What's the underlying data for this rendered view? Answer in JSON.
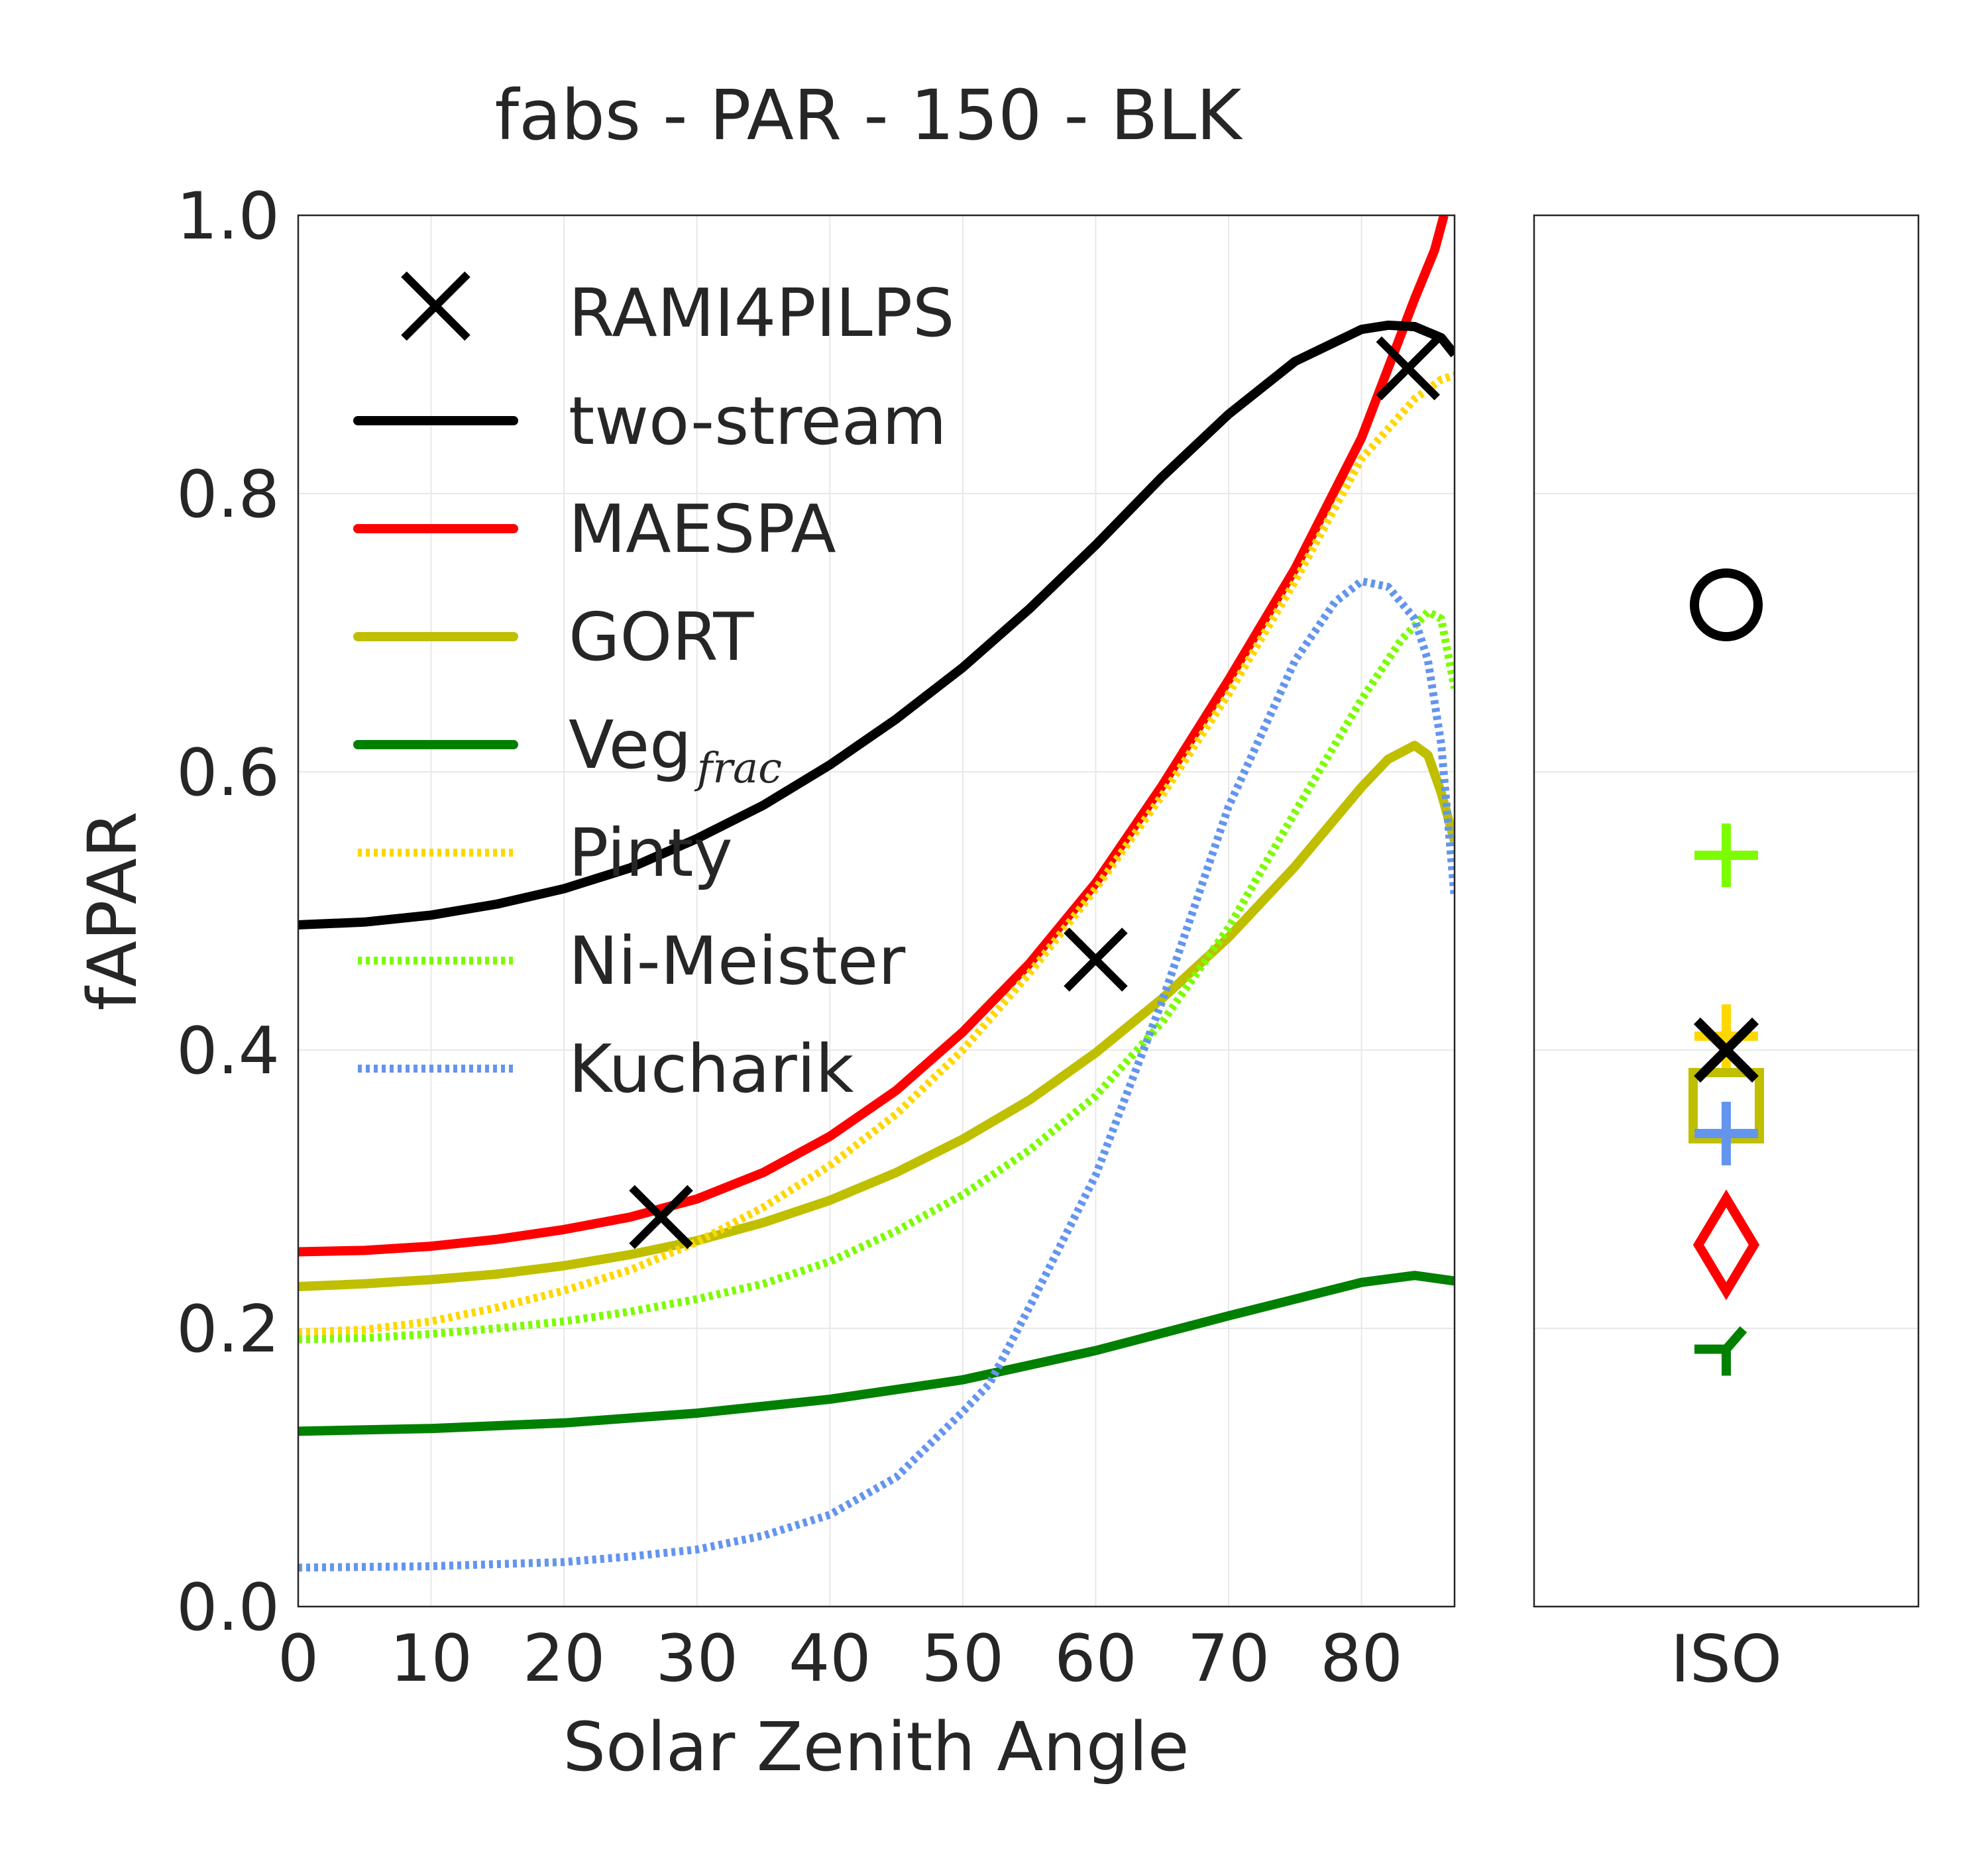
{
  "chart_data": [
    {
      "type": "line",
      "title": "fabs - PAR - 150 - BLK",
      "xlabel": "Solar Zenith Angle",
      "ylabel": "fAPAR",
      "xlim": [
        0,
        87
      ],
      "ylim": [
        0.0,
        1.0
      ],
      "xticks": [
        0,
        10,
        20,
        30,
        40,
        50,
        60,
        70,
        80
      ],
      "yticks": [
        "0.0",
        "0.2",
        "0.4",
        "0.6",
        "0.8",
        "1.0"
      ],
      "grid": true,
      "legend_position": "upper-left",
      "series": [
        {
          "name": "RAMI4PILPS",
          "style": "marker-x",
          "color": "#000000",
          "x": [
            27.3,
            60.0,
            83.5
          ],
          "y": [
            0.28,
            0.465,
            0.89
          ]
        },
        {
          "name": "two-stream",
          "style": "solid",
          "color": "#000000",
          "x": [
            0,
            5,
            10,
            15,
            20,
            25,
            30,
            35,
            40,
            45,
            50,
            55,
            60,
            65,
            70,
            75,
            80,
            82,
            84,
            86,
            87
          ],
          "y": [
            0.49,
            0.492,
            0.497,
            0.505,
            0.516,
            0.531,
            0.552,
            0.576,
            0.605,
            0.638,
            0.675,
            0.717,
            0.763,
            0.812,
            0.857,
            0.895,
            0.918,
            0.921,
            0.92,
            0.912,
            0.9
          ]
        },
        {
          "name": "MAESPA",
          "style": "solid",
          "color": "#ff0000",
          "x": [
            0,
            5,
            10,
            15,
            20,
            25,
            30,
            35,
            40,
            45,
            50,
            55,
            60,
            65,
            70,
            75,
            80,
            82,
            84,
            85.5,
            86.2
          ],
          "y": [
            0.255,
            0.256,
            0.259,
            0.264,
            0.271,
            0.28,
            0.293,
            0.312,
            0.338,
            0.371,
            0.413,
            0.462,
            0.52,
            0.59,
            0.666,
            0.746,
            0.84,
            0.89,
            0.94,
            0.975,
            1.0
          ]
        },
        {
          "name": "GORT",
          "style": "solid",
          "color": "#bfbf00",
          "x": [
            0,
            5,
            10,
            15,
            20,
            25,
            30,
            35,
            40,
            45,
            50,
            55,
            60,
            65,
            70,
            75,
            80,
            82,
            84,
            85,
            86,
            87
          ],
          "y": [
            0.23,
            0.232,
            0.235,
            0.239,
            0.245,
            0.253,
            0.263,
            0.276,
            0.292,
            0.312,
            0.336,
            0.364,
            0.398,
            0.437,
            0.481,
            0.532,
            0.589,
            0.609,
            0.619,
            0.612,
            0.585,
            0.55
          ]
        },
        {
          "name": "Veg_frac",
          "style": "solid",
          "color": "#008000",
          "x": [
            0,
            10,
            20,
            30,
            40,
            50,
            60,
            70,
            80,
            84,
            87
          ],
          "y": [
            0.126,
            0.128,
            0.132,
            0.139,
            0.149,
            0.163,
            0.184,
            0.209,
            0.233,
            0.238,
            0.234
          ]
        },
        {
          "name": "Pinty",
          "style": "dotted",
          "color": "#ffd700",
          "x": [
            0,
            5,
            10,
            15,
            20,
            25,
            30,
            35,
            40,
            45,
            50,
            55,
            60,
            65,
            70,
            75,
            80,
            84,
            86,
            87
          ],
          "y": [
            0.197,
            0.199,
            0.205,
            0.215,
            0.227,
            0.242,
            0.262,
            0.287,
            0.317,
            0.354,
            0.4,
            0.455,
            0.516,
            0.583,
            0.656,
            0.737,
            0.825,
            0.868,
            0.882,
            0.885
          ]
        },
        {
          "name": "Ni-Meister",
          "style": "dotted",
          "color": "#7cfc00",
          "x": [
            0,
            5,
            10,
            15,
            20,
            25,
            30,
            35,
            40,
            45,
            50,
            55,
            60,
            65,
            70,
            75,
            80,
            83,
            85,
            86,
            87
          ],
          "y": [
            0.192,
            0.193,
            0.196,
            0.2,
            0.205,
            0.212,
            0.221,
            0.232,
            0.248,
            0.27,
            0.296,
            0.328,
            0.367,
            0.42,
            0.488,
            0.571,
            0.652,
            0.695,
            0.715,
            0.71,
            0.66
          ]
        },
        {
          "name": "Kucharik",
          "style": "dotted",
          "color": "#6495ed",
          "x": [
            0,
            10,
            20,
            25,
            30,
            35,
            40,
            45,
            50,
            52,
            55,
            60,
            65,
            70,
            75,
            78,
            80,
            82,
            84,
            85,
            86,
            87
          ],
          "y": [
            0.028,
            0.029,
            0.032,
            0.036,
            0.041,
            0.051,
            0.066,
            0.093,
            0.14,
            0.16,
            0.215,
            0.31,
            0.435,
            0.575,
            0.68,
            0.722,
            0.737,
            0.733,
            0.71,
            0.68,
            0.62,
            0.51
          ]
        }
      ]
    },
    {
      "type": "scatter",
      "xlabel": "ISO",
      "ylim": [
        0.0,
        1.0
      ],
      "grid": true,
      "points": [
        {
          "name": "two-stream",
          "marker": "circle",
          "color": "#000000",
          "y": 0.72
        },
        {
          "name": "Ni-Meister",
          "marker": "plus",
          "color": "#7cfc00",
          "y": 0.54
        },
        {
          "name": "Pinty",
          "marker": "plus",
          "color": "#ffd700",
          "y": 0.41
        },
        {
          "name": "RAMI4PILPS",
          "marker": "x",
          "color": "#000000",
          "y": 0.4
        },
        {
          "name": "GORT",
          "marker": "square",
          "color": "#bfbf00",
          "y": 0.36
        },
        {
          "name": "Kucharik",
          "marker": "plus",
          "color": "#6495ed",
          "y": 0.34
        },
        {
          "name": "MAESPA",
          "marker": "diamond",
          "color": "#ff0000",
          "y": 0.26
        },
        {
          "name": "Veg_frac",
          "marker": "tri-down",
          "color": "#008000",
          "y": 0.185
        }
      ]
    }
  ],
  "legend": [
    {
      "label": "RAMI4PILPS",
      "sub": "",
      "style": "marker-x",
      "color": "#000000"
    },
    {
      "label": "two-stream",
      "sub": "",
      "style": "solid",
      "color": "#000000"
    },
    {
      "label": "MAESPA",
      "sub": "",
      "style": "solid",
      "color": "#ff0000"
    },
    {
      "label": "GORT",
      "sub": "",
      "style": "solid",
      "color": "#bfbf00"
    },
    {
      "label": "Veg",
      "sub": "frac",
      "style": "solid",
      "color": "#008000"
    },
    {
      "label": "Pinty",
      "sub": "",
      "style": "dotted",
      "color": "#ffd700"
    },
    {
      "label": "Ni-Meister",
      "sub": "",
      "style": "dotted",
      "color": "#7cfc00"
    },
    {
      "label": "Kucharik",
      "sub": "",
      "style": "dotted",
      "color": "#6495ed"
    }
  ]
}
